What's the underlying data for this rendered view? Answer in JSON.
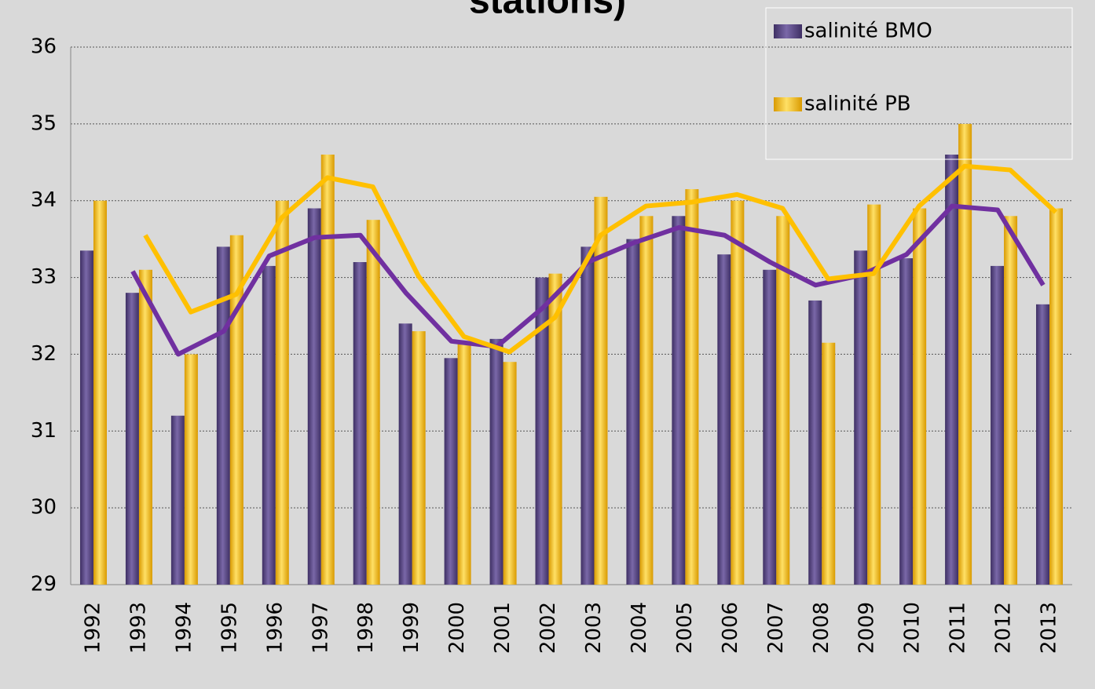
{
  "chart_data": {
    "type": "bar",
    "title": "stations)",
    "categories": [
      "1992",
      "1993",
      "1994",
      "1995",
      "1996",
      "1997",
      "1998",
      "1999",
      "2000",
      "2001",
      "2002",
      "2003",
      "2004",
      "2005",
      "2006",
      "2007",
      "2008",
      "2009",
      "2010",
      "2011",
      "2012",
      "2013"
    ],
    "series": [
      {
        "name": "salinité BMO",
        "color": "#5f4b8b",
        "values": [
          33.35,
          32.8,
          31.2,
          33.4,
          33.15,
          33.9,
          33.2,
          32.4,
          31.95,
          32.2,
          33.0,
          33.4,
          33.5,
          33.8,
          33.3,
          33.1,
          32.7,
          33.35,
          33.25,
          34.6,
          33.15,
          32.65
        ]
      },
      {
        "name": "salinité PB",
        "color": "#ffc000",
        "values": [
          34.0,
          33.1,
          32.0,
          33.55,
          34.0,
          34.6,
          33.75,
          32.3,
          32.15,
          31.9,
          33.05,
          34.05,
          33.8,
          34.15,
          34.0,
          33.8,
          32.15,
          33.95,
          33.9,
          35.0,
          33.8,
          33.9
        ]
      }
    ],
    "lines": [
      {
        "color": "#7030a0",
        "values": [
          null,
          33.08,
          32.0,
          32.3,
          33.28,
          33.52,
          33.55,
          32.8,
          32.17,
          32.1,
          32.6,
          33.2,
          33.45,
          33.65,
          33.55,
          33.2,
          32.9,
          33.03,
          33.3,
          33.93,
          33.88,
          32.9
        ]
      },
      {
        "color": "#ffc000",
        "values": [
          null,
          33.55,
          32.55,
          32.78,
          33.78,
          34.3,
          34.18,
          33.02,
          32.23,
          32.03,
          32.48,
          33.55,
          33.93,
          33.98,
          34.08,
          33.9,
          32.98,
          33.05,
          33.93,
          34.45,
          34.4,
          33.85
        ]
      }
    ],
    "ylim": [
      29,
      36
    ],
    "yticks": [
      29,
      30,
      31,
      32,
      33,
      34,
      35,
      36
    ],
    "grid": true
  }
}
